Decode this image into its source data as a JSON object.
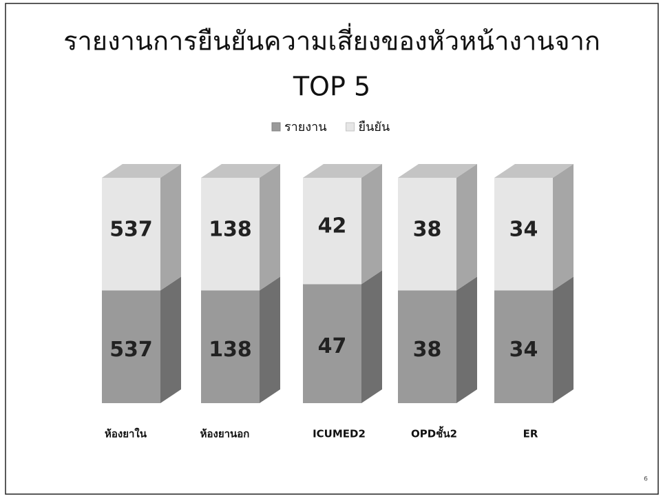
{
  "chart_data": {
    "type": "bar",
    "stacking": "percent",
    "title": [
      "รายงานการยืนยันความเสี่ยงของหัวหน้างานจาก",
      "TOP 5"
    ],
    "categories": [
      "ห้องยาใน",
      "ห้องยานอก",
      "ICUMED2",
      "OPDชั้น2",
      "ER"
    ],
    "series": [
      {
        "name": "รายงาน",
        "color": "#9a9a9a",
        "values": [
          537,
          138,
          47,
          38,
          34
        ]
      },
      {
        "name": "ยืนยัน",
        "color": "#e6e6e6",
        "values": [
          537,
          138,
          42,
          38,
          34
        ]
      }
    ],
    "legend": "top"
  },
  "page_number": "6"
}
